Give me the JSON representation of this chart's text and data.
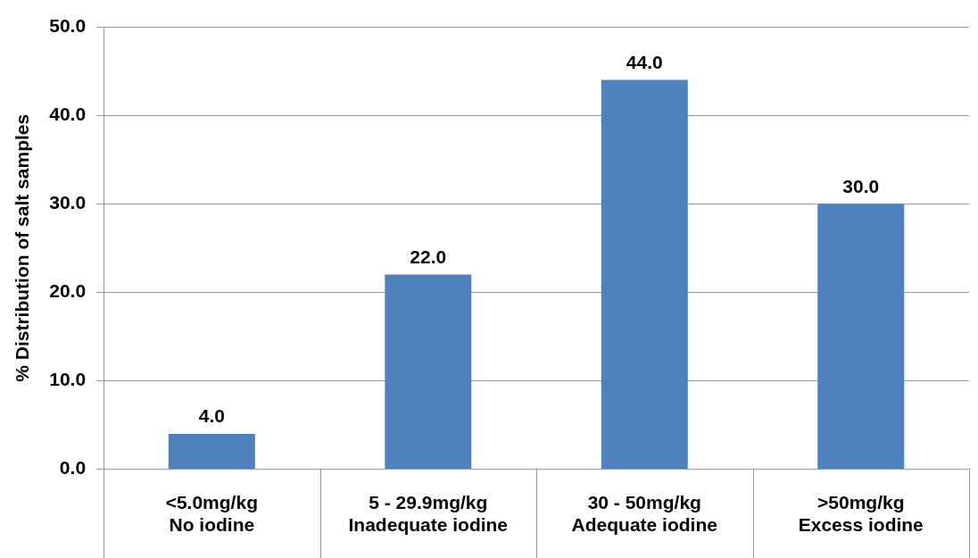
{
  "chart_data": {
    "type": "bar",
    "ylabel": "% Distribution of salt samples",
    "categories": [
      "<5.0mg/kg\nNo iodine",
      "5 - 29.9mg/kg\nInadequate iodine",
      "30 - 50mg/kg\nAdequate iodine",
      ">50mg/kg\nExcess iodine"
    ],
    "values": [
      4.0,
      22.0,
      44.0,
      30.0
    ],
    "color": "#4f81bd",
    "value_labels": [
      "4.0",
      "22.0",
      "44.0",
      "30.0"
    ],
    "ylim": [
      0,
      50
    ],
    "yticks": [
      {
        "value": 0,
        "label": "0.0"
      },
      {
        "value": 10,
        "label": "10.0"
      },
      {
        "value": 20,
        "label": "20.0"
      },
      {
        "value": 30,
        "label": "30.0"
      },
      {
        "value": 40,
        "label": "40.0"
      },
      {
        "value": 50,
        "label": "50.0"
      }
    ],
    "grid": "y",
    "legend": false
  }
}
